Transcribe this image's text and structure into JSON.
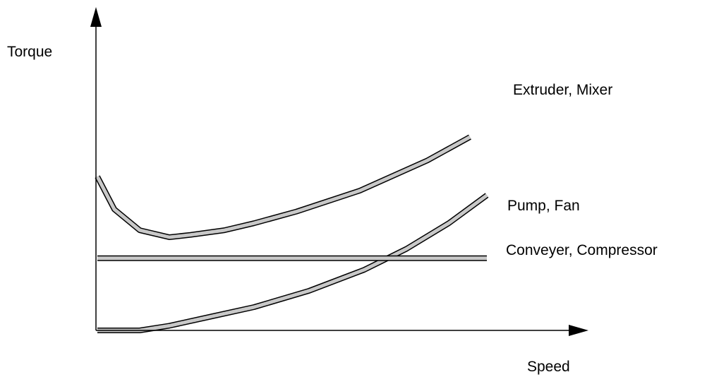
{
  "chart_data": {
    "type": "line",
    "title": "",
    "xlabel": "Speed",
    "ylabel": "Torque",
    "xlim": [
      0,
      1
    ],
    "ylim": [
      0,
      1
    ],
    "grid": false,
    "legend": "none",
    "ticks": false,
    "band_fill_color": "#c8c8c8",
    "band_edge_color": "#000000",
    "series": [
      {
        "name": "Extruder, Mixer",
        "x": [
          0.0,
          0.04,
          0.1,
          0.17,
          0.22,
          0.3,
          0.37,
          0.47,
          0.62,
          0.78,
          0.88
        ],
        "y": [
          0.66,
          0.52,
          0.43,
          0.4,
          0.41,
          0.43,
          0.46,
          0.51,
          0.6,
          0.73,
          0.83
        ]
      },
      {
        "name": "Pump, Fan",
        "x": [
          0.0,
          0.1,
          0.17,
          0.27,
          0.37,
          0.5,
          0.63,
          0.73,
          0.83,
          0.92
        ],
        "y": [
          0.0,
          0.0,
          0.02,
          0.06,
          0.1,
          0.17,
          0.26,
          0.35,
          0.46,
          0.58
        ]
      },
      {
        "name": "Conveyer, Compressor",
        "x": [
          0.0,
          0.92
        ],
        "y": [
          0.31,
          0.31
        ]
      }
    ]
  }
}
